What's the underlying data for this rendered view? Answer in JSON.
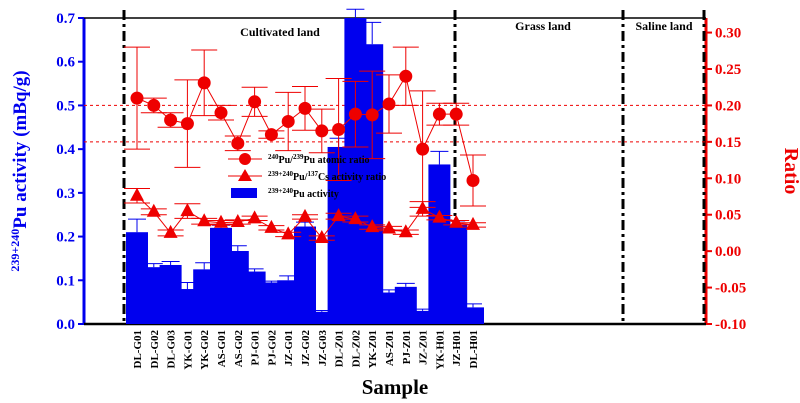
{
  "chart_data": {
    "type": "bar",
    "xlabel": "Sample",
    "ylabel_left": "239+240Pu activity (mBq/g)",
    "ylabel_left_parts": {
      "sup": "239+240",
      "main": "Pu activity (mBq/g)"
    },
    "ylabel_right": "Ratio",
    "ylim_left": [
      0.0,
      0.7
    ],
    "ylim_right": [
      -0.1,
      0.32
    ],
    "yticks_left": [
      0.0,
      0.1,
      0.2,
      0.3,
      0.4,
      0.5,
      0.6,
      0.7
    ],
    "ytick_labels_left": [
      "0.0",
      "0.1",
      "0.2",
      "0.3",
      "0.4",
      "0.5",
      "0.6",
      "0.7"
    ],
    "yticks_right": [
      -0.1,
      -0.05,
      0.0,
      0.05,
      0.1,
      0.15,
      0.2,
      0.25,
      0.3
    ],
    "ytick_labels_right": [
      "-0.10",
      "-0.05",
      "0.00",
      "0.05",
      "0.10",
      "0.15",
      "0.20",
      "0.25",
      "0.30"
    ],
    "categories": [
      "DL-G01",
      "DL-G02",
      "DL-G03",
      "YK-G01",
      "YK-G02",
      "AS-G01",
      "AS-G02",
      "PJ-G01",
      "PJ-G02",
      "JZ-G01",
      "JZ-G02",
      "JZ-G03",
      "DL-Z01",
      "DL-Z02",
      "YK-Z01",
      "AS-Z01",
      "PJ-Z01",
      "JZ-Z01",
      "YK-H01",
      "JZ-H01",
      "DL-H01"
    ],
    "series": [
      {
        "name": "Pu activity",
        "legend_sup": "239+240",
        "legend_main": "Pu activity",
        "axis": "left",
        "kind": "bar",
        "color": "#0000ee",
        "values": [
          0.21,
          0.13,
          0.135,
          0.08,
          0.125,
          0.22,
          0.167,
          0.12,
          0.095,
          0.1,
          0.223,
          0.028,
          0.405,
          0.7,
          0.64,
          0.072,
          0.085,
          0.03,
          0.365,
          0.228,
          0.038
        ],
        "errors": [
          0.03,
          0.008,
          0.008,
          0.015,
          0.015,
          0.006,
          0.012,
          0.006,
          0.003,
          0.01,
          0.01,
          0.003,
          0.02,
          0.02,
          0.05,
          0.006,
          0.008,
          0.004,
          0.03,
          0.008,
          0.008
        ]
      },
      {
        "name": "240Pu/239Pu atomic ratio",
        "legend_sup1": "240",
        "legend_mid": "Pu/",
        "legend_sup2": "239",
        "legend_main": "Pu atomic ratio",
        "axis": "right",
        "kind": "line",
        "marker": "circle",
        "color": "#ee0000",
        "values": [
          0.21,
          0.2,
          0.18,
          0.175,
          0.231,
          0.19,
          0.148,
          0.205,
          0.16,
          0.178,
          0.196,
          0.165,
          0.167,
          0.188,
          0.187,
          0.202,
          0.24,
          0.14,
          0.188,
          0.188,
          0.097
        ],
        "errors": [
          0.07,
          0.01,
          0.01,
          0.06,
          0.045,
          0.01,
          0.01,
          0.02,
          0.005,
          0.04,
          0.03,
          0.03,
          0.07,
          0.045,
          0.06,
          0.04,
          0.04,
          0.08,
          0.015,
          0.015,
          0.035
        ]
      },
      {
        "name": "239+240Pu/137Cs activity ratio",
        "legend_sup1": "239+240",
        "legend_mid": "Pu/",
        "legend_sup2": "137",
        "legend_main": "Cs activity ratio",
        "axis": "right",
        "kind": "line",
        "marker": "triangle",
        "color": "#ee0000",
        "values": [
          0.076,
          0.054,
          0.025,
          0.055,
          0.041,
          0.039,
          0.04,
          0.045,
          0.032,
          0.023,
          0.047,
          0.018,
          0.048,
          0.044,
          0.033,
          0.031,
          0.026,
          0.058,
          0.046,
          0.039,
          0.036
        ],
        "errors": [
          0.01,
          0.004,
          0.004,
          0.01,
          0.004,
          0.003,
          0.003,
          0.003,
          0.003,
          0.003,
          0.003,
          0.003,
          0.004,
          0.004,
          0.003,
          0.003,
          0.003,
          0.01,
          0.003,
          0.003,
          0.003
        ]
      }
    ],
    "reference_lines_right": [
      0.2,
      0.15
    ],
    "region_labels": [
      "Cultivated land",
      "Grass land",
      "Saline land"
    ]
  }
}
